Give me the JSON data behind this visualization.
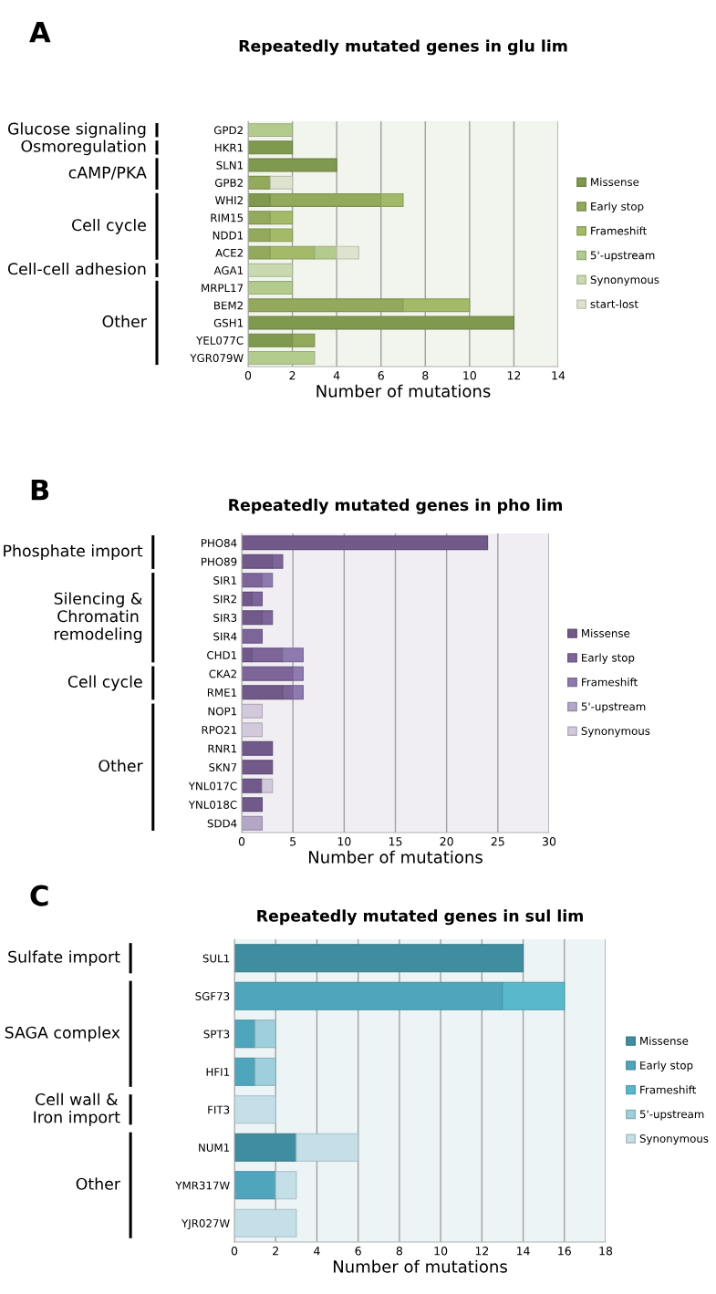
{
  "chart_data": [
    {
      "type": "bar",
      "orientation": "horizontal",
      "stacked": true,
      "title": "Repeatedly mutated genes in glu lim",
      "xlabel": "Number of mutations",
      "categories": [
        "GPD2",
        "HKR1",
        "SLN1",
        "GPB2",
        "WHI2",
        "RIM15",
        "NDD1",
        "ACE2",
        "AGA1",
        "MRPL17",
        "BEM2",
        "GSH1",
        "YEL077C",
        "YGR079W"
      ],
      "series": [
        {
          "name": "Missense",
          "color": "#7f9a4e",
          "values": [
            null,
            2,
            4,
            null,
            1,
            null,
            null,
            null,
            null,
            null,
            null,
            12,
            2,
            null
          ]
        },
        {
          "name": "Early stop",
          "color": "#93a95c",
          "values": [
            null,
            null,
            null,
            1,
            5,
            1,
            1,
            1,
            null,
            null,
            7,
            null,
            1,
            null
          ]
        },
        {
          "name": "Frameshift",
          "color": "#a3bb68",
          "values": [
            null,
            null,
            null,
            null,
            1,
            1,
            1,
            2,
            null,
            null,
            3,
            null,
            null,
            null
          ]
        },
        {
          "name": "5'-upstream",
          "color": "#b3cc8e",
          "values": [
            2,
            null,
            null,
            null,
            null,
            null,
            null,
            1,
            null,
            2,
            null,
            null,
            null,
            3
          ]
        },
        {
          "name": "Synonymous",
          "color": "#c9d9b0",
          "values": [
            null,
            null,
            null,
            null,
            null,
            null,
            null,
            null,
            2,
            null,
            null,
            null,
            null,
            null
          ]
        },
        {
          "name": "start-lost",
          "color": "#dde3cf",
          "values": [
            null,
            null,
            null,
            1,
            null,
            null,
            null,
            1,
            null,
            null,
            null,
            null,
            null,
            null
          ]
        }
      ],
      "xlim": [
        0,
        14
      ],
      "xticks": [
        0,
        2,
        4,
        6,
        8,
        10,
        12,
        14
      ],
      "grid": "x",
      "legend": "right",
      "annotations": [
        "A",
        "Glucose signaling",
        "Osmoregulation",
        "cAMP/PKA",
        "Cell cycle",
        "Cell-cell adhesion",
        "Other"
      ]
    },
    {
      "type": "bar",
      "orientation": "horizontal",
      "stacked": true,
      "title": "Repeatedly mutated genes in pho lim",
      "xlabel": "Number of mutations",
      "categories": [
        "PHO84",
        "PHO89",
        "SIR1",
        "SIR2",
        "SIR3",
        "SIR4",
        "CHD1",
        "CKA2",
        "RME1",
        "NOP1",
        "RPO21",
        "RNR1",
        "SKN7",
        "YNL017C",
        "YNL018C",
        "SDD4"
      ],
      "series": [
        {
          "name": "Missense",
          "color": "#715a8a",
          "values": [
            24,
            3,
            null,
            1,
            2,
            null,
            1,
            null,
            4,
            null,
            null,
            3,
            3,
            2,
            2,
            null
          ]
        },
        {
          "name": "Early stop",
          "color": "#7d6599",
          "values": [
            null,
            1,
            2,
            1,
            1,
            2,
            3,
            5,
            1,
            null,
            null,
            null,
            null,
            null,
            null,
            null
          ]
        },
        {
          "name": "Frameshift",
          "color": "#8f7aaf",
          "values": [
            null,
            null,
            1,
            null,
            null,
            null,
            2,
            1,
            1,
            null,
            null,
            null,
            null,
            null,
            null,
            null
          ]
        },
        {
          "name": "5'-upstream",
          "color": "#b3a6c6",
          "values": [
            null,
            null,
            null,
            null,
            null,
            null,
            null,
            null,
            null,
            null,
            null,
            null,
            null,
            null,
            null,
            2
          ]
        },
        {
          "name": "Synonymous",
          "color": "#d3c9dd",
          "values": [
            null,
            null,
            null,
            null,
            null,
            null,
            null,
            null,
            null,
            2,
            2,
            null,
            null,
            1,
            null,
            null
          ]
        }
      ],
      "xlim": [
        0,
        30
      ],
      "xticks": [
        0,
        5,
        10,
        15,
        20,
        25,
        30
      ],
      "grid": "x",
      "legend": "right",
      "annotations": [
        "B",
        "Phosphate import",
        "Silencing &\nChromatin\nremodeling",
        "Cell cycle",
        "Other"
      ]
    },
    {
      "type": "bar",
      "orientation": "horizontal",
      "stacked": true,
      "title": "Repeatedly mutated genes in sul lim",
      "xlabel": "Number of mutations",
      "categories": [
        "SUL1",
        "SGF73",
        "SPT3",
        "HFI1",
        "FIT3",
        "NUM1",
        "YMR317W",
        "YJR027W"
      ],
      "series": [
        {
          "name": "Missense",
          "color": "#3f8ea0",
          "values": [
            14,
            null,
            null,
            null,
            null,
            3,
            null,
            null
          ]
        },
        {
          "name": "Early stop",
          "color": "#4fa5bc",
          "values": [
            null,
            13,
            1,
            1,
            null,
            null,
            2,
            null
          ]
        },
        {
          "name": "Frameshift",
          "color": "#5ab8cc",
          "values": [
            null,
            3,
            null,
            null,
            null,
            null,
            null,
            null
          ]
        },
        {
          "name": "5'-upstream",
          "color": "#9fcfdc",
          "values": [
            null,
            null,
            1,
            1,
            null,
            null,
            null,
            null
          ]
        },
        {
          "name": "Synonymous",
          "color": "#c5dfe8",
          "values": [
            null,
            null,
            null,
            null,
            2,
            3,
            1,
            3
          ]
        }
      ],
      "xlim": [
        0,
        18
      ],
      "xticks": [
        0,
        2,
        4,
        6,
        8,
        10,
        12,
        14,
        16,
        18
      ],
      "grid": "x",
      "legend": "right",
      "annotations": [
        "C",
        "Sulfate import",
        "SAGA complex",
        "Cell wall &\nIron import",
        "Other"
      ]
    }
  ]
}
